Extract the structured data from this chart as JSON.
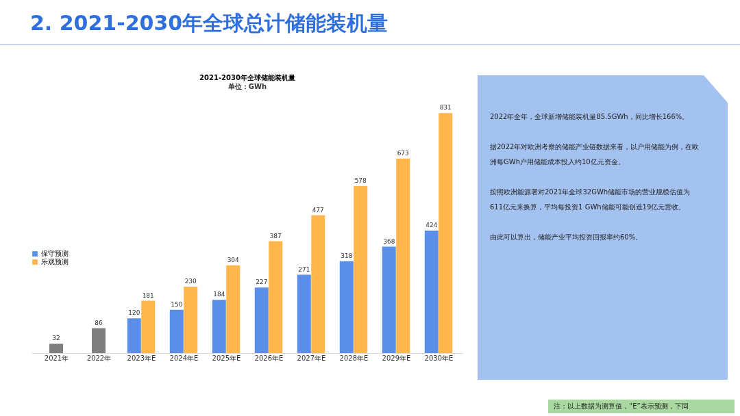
{
  "chart_data": {
    "type": "bar",
    "title": "2021-2030年全球储能装机量",
    "subtitle": "单位：GWh",
    "categories": [
      "2021年",
      "2022年",
      "2023年E",
      "2024年E",
      "2025年E",
      "2026年E",
      "2027年E",
      "2028年E",
      "2029年E",
      "2030年E"
    ],
    "series": [
      {
        "color": "#7f7f7f",
        "values": [
          32,
          86,
          null,
          null,
          null,
          null,
          null,
          null,
          null,
          null
        ]
      },
      {
        "name": "保守预测",
        "color": "#5b8ee6",
        "values": [
          null,
          null,
          120,
          150,
          184,
          227,
          271,
          318,
          368,
          424
        ]
      },
      {
        "name": "乐观预测",
        "color": "#ffb64d",
        "values": [
          null,
          null,
          181,
          230,
          304,
          387,
          477,
          578,
          673,
          831
        ]
      }
    ],
    "data_labels": true,
    "legend": "left",
    "tick_labels": "x",
    "annotations": [
      "2. 2021-2030年全球总计储能装机量",
      "2022年全年，全球新增储能装机量85.5GWh，同比增长166%。",
      "据2022年对欧洲考察的储能产业链数据来看，以户用储能为例，在欧洲每GWh户用储能成本投入约10亿元资金。",
      "按照欧洲能源署对2021年全球32GWh储能市场的营业规模估值为611亿元来换算，平均每投资1 GWh储能可能创造19亿元营收。",
      "由此可以算出，储能产业平均投资回报率约60%。",
      "注：以上数据为测算值，“E”表示预测，下同"
    ]
  }
}
